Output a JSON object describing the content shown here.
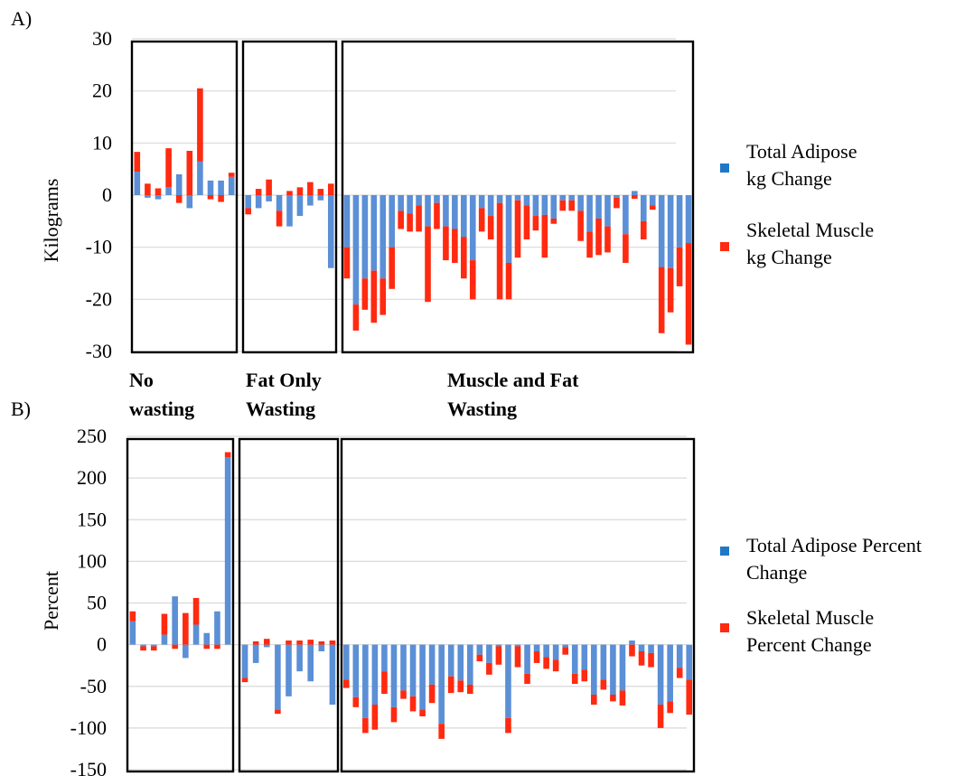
{
  "figure": {
    "colors": {
      "adipose": "#5b8fd6",
      "muscle": "#ff2a10",
      "legend_adipose": "#1f77c6",
      "legend_muscle": "#ff2a10"
    }
  },
  "chart_data": [
    {
      "panel_label": "A)",
      "type": "bar",
      "stacked": true,
      "ylabel": "Kilograms",
      "ylim": [
        -30,
        30
      ],
      "yticks": [
        30,
        20,
        10,
        0,
        -10,
        -20,
        -30
      ],
      "grid": true,
      "legend_position": "right",
      "group_labels": [
        {
          "name": "no_wasting",
          "lines": [
            "No",
            "wasting"
          ]
        },
        {
          "name": "fat_only_wasting",
          "lines": [
            "Fat Only",
            "Wasting"
          ]
        },
        {
          "name": "muscle_and_fat_wasting",
          "lines": [
            "Muscle and Fat",
            "Wasting"
          ]
        }
      ],
      "series": [
        {
          "name": "Total Adipose kg Change",
          "legend_lines": [
            "Total Adipose",
            "kg Change"
          ],
          "color": "#5b8fd6",
          "groups": [
            [
              4.5,
              -0.5,
              -0.8,
              1.5,
              4,
              -2.5,
              6.5,
              2.8,
              2.8,
              3.5
            ],
            [
              -2.5,
              -2.5,
              -1.2,
              -3,
              -6,
              -4,
              -2,
              -1,
              -14
            ],
            [
              -10,
              -21,
              -16,
              -14.5,
              -16,
              -10,
              -3,
              -3.5,
              -2,
              -6,
              -1.5,
              -6,
              -6.5,
              -8,
              -12.5,
              -2.5,
              -4,
              -1.5,
              -13,
              -1,
              -2,
              -4,
              -3.8,
              -4.5,
              -1,
              -1,
              -3,
              -7,
              -4.5,
              -6,
              -0.5,
              -7.5,
              0.8,
              -5,
              -2,
              -13.8,
              -14,
              -10,
              -9.2
            ]
          ]
        },
        {
          "name": "Skeletal Muscle kg Change",
          "legend_lines": [
            "Skeletal Muscle",
            "kg Change"
          ],
          "color": "#ff2a10",
          "groups": [
            [
              3.8,
              2.2,
              1.3,
              7.5,
              -1.5,
              8.5,
              14,
              -0.8,
              -1.3,
              0.8
            ],
            [
              -1.2,
              1.2,
              3,
              -3,
              0.8,
              1.5,
              2.5,
              1.2,
              2.2
            ],
            [
              -6,
              -5,
              -6,
              -10,
              -7,
              -8,
              -3.5,
              -3.5,
              -5,
              -14.5,
              -5,
              -6.5,
              -6.5,
              -8,
              -7.5,
              -4.5,
              -4.5,
              -18.5,
              -7,
              -11,
              -6.5,
              -2.8,
              -8.2,
              -1,
              -2,
              -2,
              -5.8,
              -5,
              -7,
              -5,
              -2,
              -5.5,
              -0.7,
              -3.5,
              -0.8,
              -12.7,
              -8.5,
              -7.5,
              -19.5
            ]
          ]
        }
      ]
    },
    {
      "panel_label": "B)",
      "type": "bar",
      "stacked": true,
      "ylabel": "Percent",
      "ylim": [
        -150,
        250
      ],
      "yticks": [
        250,
        200,
        150,
        100,
        50,
        0,
        -50,
        -100,
        -150
      ],
      "grid": true,
      "legend_position": "right",
      "series": [
        {
          "name": "Total Adipose Percent Change",
          "legend_lines": [
            "Total Adipose Percent",
            "Change"
          ],
          "color": "#5b8fd6",
          "groups": [
            [
              28,
              -2,
              -2,
              12,
              58,
              -16,
              24,
              14,
              40,
              225
            ],
            [
              -40,
              -22,
              -3,
              -78,
              -62,
              -32,
              -44,
              -8,
              -72
            ],
            [
              -42,
              -63,
              -88,
              -72,
              -32,
              -75,
              -55,
              -62,
              -78,
              -48,
              -95,
              -38,
              -43,
              -48,
              -12,
              -22,
              -2,
              -88,
              -2,
              -35,
              -8,
              -15,
              -18,
              -3,
              -35,
              -30,
              -60,
              -42,
              -60,
              -55,
              5,
              -8,
              -10,
              -72,
              -68,
              -28,
              -42
            ]
          ]
        },
        {
          "name": "Skeletal Muscle Percent Change",
          "legend_lines": [
            "Skeletal Muscle",
            "Percent Change"
          ],
          "color": "#ff2a10",
          "groups": [
            [
              12,
              -5,
              -5,
              25,
              -5,
              38,
              32,
              -5,
              -5,
              6
            ],
            [
              -5,
              4,
              7,
              -5,
              5,
              5,
              6,
              4,
              5
            ],
            [
              -10,
              -12,
              -18,
              -30,
              -27,
              -18,
              -10,
              -18,
              -8,
              -22,
              -18,
              -20,
              -14,
              -11,
              -8,
              -14,
              -22,
              -18,
              -25,
              -12,
              -14,
              -14,
              -14,
              -9,
              -12,
              -14,
              -12,
              -12,
              -8,
              -18,
              -14,
              -17,
              -17,
              -28,
              -14,
              -12,
              -42
            ]
          ]
        }
      ]
    }
  ]
}
